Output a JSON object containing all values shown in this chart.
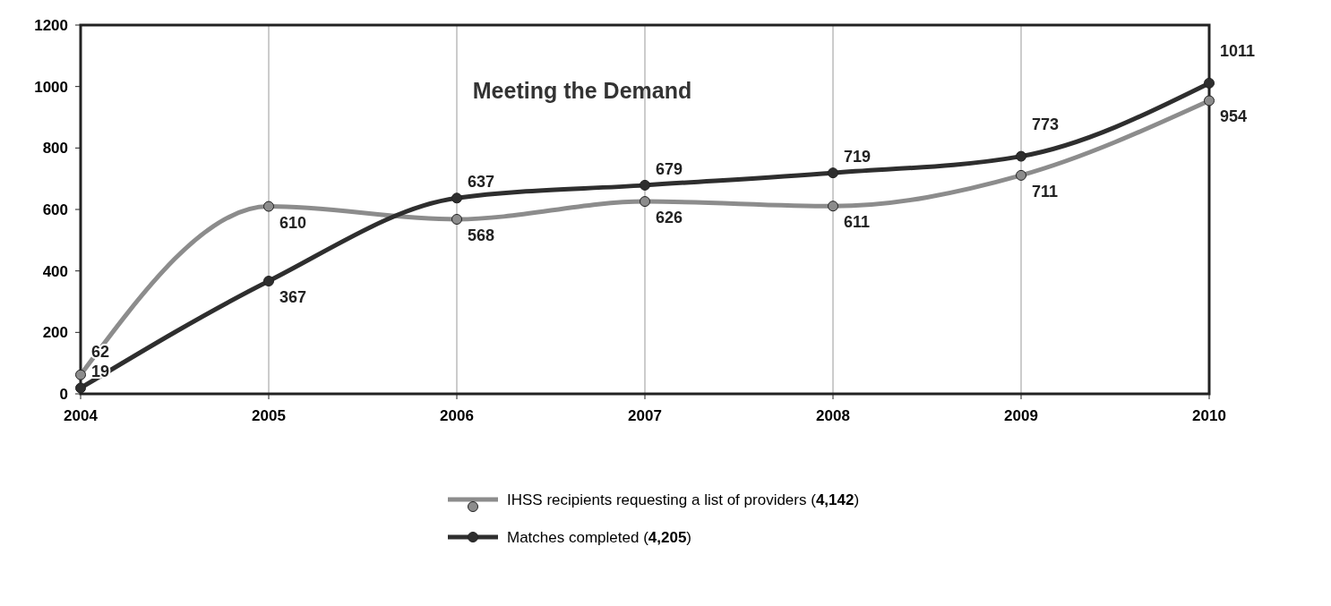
{
  "chart_data": {
    "type": "line",
    "title": "Meeting the Demand",
    "categories": [
      "2004",
      "2005",
      "2006",
      "2007",
      "2008",
      "2009",
      "2010"
    ],
    "series": [
      {
        "name": "IHSS recipients requesting a list of providers (4,142)",
        "color": "#8c8c8c",
        "values": [
          62,
          610,
          568,
          626,
          611,
          711,
          954
        ]
      },
      {
        "name": "Matches completed (4,205)",
        "color": "#2e2e2e",
        "values": [
          19,
          367,
          637,
          679,
          719,
          773,
          1011
        ]
      }
    ],
    "ylim": [
      0,
      1200
    ],
    "yticks": [
      0,
      200,
      400,
      600,
      800,
      1000,
      1200
    ],
    "grid": "x",
    "legend": "bottom",
    "marker": "circle",
    "line_style": "solid",
    "data_labels": true
  }
}
